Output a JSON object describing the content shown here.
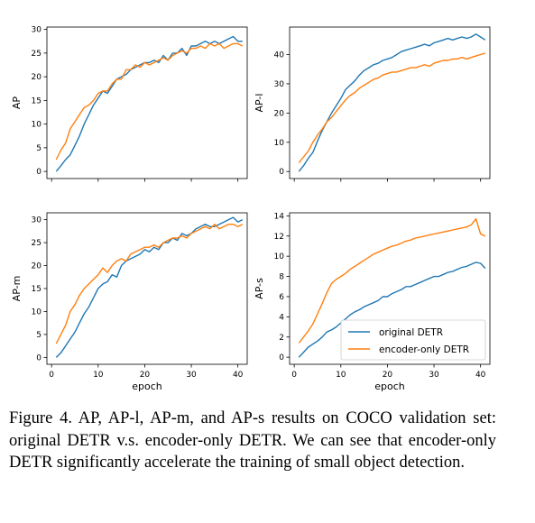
{
  "colors": {
    "original": "#1f77b4",
    "encoder_only": "#ff7f0e"
  },
  "caption": "Figure 4. AP, AP-l, AP-m, and AP-s results on COCO validation set: original DETR v.s. encoder-only DETR. We can see that encoder-only DETR significantly accelerate the training of small object detection.",
  "chart_data": [
    {
      "type": "line",
      "ylabel": "AP",
      "xlabel": "",
      "xlim": [
        -1,
        42
      ],
      "ylim": [
        -1.5,
        30.5
      ],
      "xticks": [
        0,
        10,
        20,
        30,
        40
      ],
      "yticks": [
        0,
        5,
        10,
        15,
        20,
        25,
        30
      ],
      "x_tick_labels_shown": false,
      "legend": null,
      "series": [
        {
          "name": "original DETR",
          "x": [
            1,
            2,
            3,
            4,
            5,
            6,
            7,
            8,
            9,
            10,
            11,
            12,
            13,
            14,
            15,
            16,
            17,
            18,
            19,
            20,
            21,
            22,
            23,
            24,
            25,
            26,
            27,
            28,
            29,
            30,
            31,
            32,
            33,
            34,
            35,
            36,
            37,
            38,
            39,
            40,
            41
          ],
          "values": [
            0,
            1.2,
            2.5,
            3.5,
            5.5,
            7.5,
            10,
            12,
            14,
            15.5,
            17,
            16.5,
            18,
            19.5,
            20,
            20.5,
            21.5,
            22,
            22.5,
            23,
            23,
            23.5,
            23,
            24.5,
            23.5,
            25,
            25,
            26,
            24.5,
            26.5,
            26.5,
            27,
            27.5,
            27,
            27.5,
            27,
            27.5,
            28,
            28.5,
            27.5,
            27.5
          ]
        },
        {
          "name": "encoder-only DETR",
          "x": [
            1,
            2,
            3,
            4,
            5,
            6,
            7,
            8,
            9,
            10,
            11,
            12,
            13,
            14,
            15,
            16,
            17,
            18,
            19,
            20,
            21,
            22,
            23,
            24,
            25,
            26,
            27,
            28,
            29,
            30,
            31,
            32,
            33,
            34,
            35,
            36,
            37,
            38,
            39,
            40,
            41
          ],
          "values": [
            2.5,
            4.5,
            6,
            9,
            10.5,
            12,
            13.5,
            14,
            15,
            16.5,
            17,
            17,
            18.5,
            19.5,
            19.5,
            21.5,
            21.5,
            22.5,
            22,
            23,
            22.5,
            23,
            23.5,
            24,
            23.5,
            24.5,
            25,
            25.5,
            25,
            26,
            26,
            26.5,
            26,
            27,
            26.5,
            27,
            26,
            26.5,
            27,
            27,
            26.5
          ]
        }
      ]
    },
    {
      "type": "line",
      "ylabel": "AP-l",
      "xlabel": "",
      "xlim": [
        -1,
        42
      ],
      "ylim": [
        -2.4,
        49.4
      ],
      "xticks": [
        0,
        10,
        20,
        30,
        40
      ],
      "yticks": [
        0,
        10,
        20,
        30,
        40
      ],
      "x_tick_labels_shown": false,
      "legend": null,
      "series": [
        {
          "name": "original DETR",
          "x": [
            1,
            2,
            3,
            4,
            5,
            6,
            7,
            8,
            9,
            10,
            11,
            12,
            13,
            14,
            15,
            16,
            17,
            18,
            19,
            20,
            21,
            22,
            23,
            24,
            25,
            26,
            27,
            28,
            29,
            30,
            31,
            32,
            33,
            34,
            35,
            36,
            37,
            38,
            39,
            40,
            41
          ],
          "values": [
            0,
            2,
            4.5,
            6.5,
            10.5,
            14,
            17,
            20,
            22.5,
            25,
            28,
            29.5,
            31,
            33,
            34.5,
            35.5,
            36.5,
            37,
            38,
            38.5,
            39,
            40,
            41,
            41.5,
            42,
            42.5,
            43,
            43.5,
            43,
            44,
            44.5,
            45,
            45.5,
            45,
            45.5,
            46,
            45.5,
            46,
            47,
            46,
            45
          ]
        },
        {
          "name": "encoder-only DETR",
          "x": [
            1,
            2,
            3,
            4,
            5,
            6,
            7,
            8,
            9,
            10,
            11,
            12,
            13,
            14,
            15,
            16,
            17,
            18,
            19,
            20,
            21,
            22,
            23,
            24,
            25,
            26,
            27,
            28,
            29,
            30,
            31,
            32,
            33,
            34,
            35,
            36,
            37,
            38,
            39,
            40,
            41
          ],
          "values": [
            3,
            5,
            7,
            10,
            12.5,
            14.5,
            17,
            18.5,
            20.5,
            22.5,
            24.5,
            26,
            27,
            28.5,
            29.5,
            30.5,
            31.5,
            32,
            33,
            33.5,
            34,
            34,
            34.5,
            35,
            35.5,
            35.5,
            36,
            36.5,
            36,
            37,
            37.5,
            38,
            38,
            38.5,
            38.5,
            39,
            38.5,
            39,
            39.5,
            40,
            40.5
          ]
        }
      ]
    },
    {
      "type": "line",
      "ylabel": "AP-m",
      "xlabel": "epoch",
      "xlim": [
        -1,
        42
      ],
      "ylim": [
        -1.5,
        31.5
      ],
      "xticks": [
        0,
        10,
        20,
        30,
        40
      ],
      "yticks": [
        0,
        5,
        10,
        15,
        20,
        25,
        30
      ],
      "x_tick_labels_shown": true,
      "legend": null,
      "series": [
        {
          "name": "original DETR",
          "x": [
            1,
            2,
            3,
            4,
            5,
            6,
            7,
            8,
            9,
            10,
            11,
            12,
            13,
            14,
            15,
            16,
            17,
            18,
            19,
            20,
            21,
            22,
            23,
            24,
            25,
            26,
            27,
            28,
            29,
            30,
            31,
            32,
            33,
            34,
            35,
            36,
            37,
            38,
            39,
            40,
            41
          ],
          "values": [
            0,
            1,
            2.5,
            4,
            5.5,
            7.5,
            9.5,
            11,
            13,
            15,
            16,
            16.5,
            18,
            17.5,
            20,
            21,
            21.5,
            22,
            22.5,
            23.5,
            23,
            24,
            23.5,
            25,
            25,
            26,
            25.5,
            27,
            26.5,
            27,
            28,
            28.5,
            29,
            28.5,
            28.5,
            29,
            29.5,
            30,
            30.5,
            29.5,
            30
          ]
        },
        {
          "name": "encoder-only DETR",
          "x": [
            1,
            2,
            3,
            4,
            5,
            6,
            7,
            8,
            9,
            10,
            11,
            12,
            13,
            14,
            15,
            16,
            17,
            18,
            19,
            20,
            21,
            22,
            23,
            24,
            25,
            26,
            27,
            28,
            29,
            30,
            31,
            32,
            33,
            34,
            35,
            36,
            37,
            38,
            39,
            40,
            41
          ],
          "values": [
            3,
            5,
            7,
            10,
            11.5,
            13.5,
            15,
            16,
            17,
            18,
            19.5,
            18.5,
            20,
            21,
            21.5,
            21,
            22.5,
            23,
            23.5,
            24,
            24,
            24.5,
            24,
            25,
            25.5,
            26,
            26,
            26.5,
            26,
            27,
            27.5,
            28,
            28.5,
            28,
            29,
            28,
            28.5,
            29,
            29,
            28.5,
            29
          ]
        }
      ]
    },
    {
      "type": "line",
      "ylabel": "AP-s",
      "xlabel": "epoch",
      "xlim": [
        -1,
        42
      ],
      "ylim": [
        -0.7,
        14.3
      ],
      "xticks": [
        0,
        10,
        20,
        30,
        40
      ],
      "yticks": [
        0,
        2,
        4,
        6,
        8,
        10,
        12,
        14
      ],
      "x_tick_labels_shown": true,
      "legend": "lower-right",
      "series": [
        {
          "name": "original DETR",
          "x": [
            1,
            2,
            3,
            4,
            5,
            6,
            7,
            8,
            9,
            10,
            11,
            12,
            13,
            14,
            15,
            16,
            17,
            18,
            19,
            20,
            21,
            22,
            23,
            24,
            25,
            26,
            27,
            28,
            29,
            30,
            31,
            32,
            33,
            34,
            35,
            36,
            37,
            38,
            39,
            40,
            41
          ],
          "values": [
            0,
            0.5,
            1,
            1.3,
            1.6,
            2,
            2.5,
            2.7,
            3,
            3.4,
            3.8,
            4.2,
            4.5,
            4.7,
            5,
            5.2,
            5.4,
            5.6,
            6,
            6,
            6.3,
            6.5,
            6.7,
            7,
            7,
            7.2,
            7.4,
            7.6,
            7.8,
            8,
            8,
            8.2,
            8.4,
            8.5,
            8.7,
            8.9,
            9,
            9.2,
            9.4,
            9.3,
            8.8
          ]
        },
        {
          "name": "encoder-only DETR",
          "x": [
            1,
            2,
            3,
            4,
            5,
            6,
            7,
            8,
            9,
            10,
            11,
            12,
            13,
            14,
            15,
            16,
            17,
            18,
            19,
            20,
            21,
            22,
            23,
            24,
            25,
            26,
            27,
            28,
            29,
            30,
            31,
            32,
            33,
            34,
            35,
            36,
            37,
            38,
            39,
            40,
            41
          ],
          "values": [
            1.4,
            2,
            2.6,
            3.3,
            4.3,
            5.3,
            6.4,
            7.3,
            7.7,
            8,
            8.3,
            8.7,
            9,
            9.3,
            9.6,
            9.9,
            10.2,
            10.4,
            10.6,
            10.8,
            11,
            11.1,
            11.3,
            11.5,
            11.6,
            11.8,
            11.9,
            12,
            12.1,
            12.2,
            12.3,
            12.4,
            12.5,
            12.6,
            12.7,
            12.8,
            12.9,
            13.1,
            13.7,
            12.2,
            12
          ]
        }
      ]
    }
  ]
}
